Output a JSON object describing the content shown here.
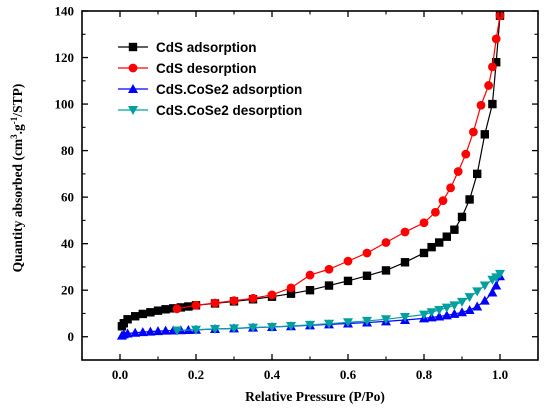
{
  "chart_data": {
    "type": "line",
    "xlabel": "Relative Pressure (P/Po)",
    "ylabel_main": "Quantity absorbed (cm",
    "ylabel_sup1": "3",
    "ylabel_mid": ".g",
    "ylabel_sup2": "-1",
    "ylabel_end": "/STP)",
    "xlim": [
      -0.1,
      1.1
    ],
    "ylim": [
      -10,
      140
    ],
    "xticks": [
      0.0,
      0.2,
      0.4,
      0.6,
      0.8,
      1.0
    ],
    "xtick_labels": [
      "0.0",
      "0.2",
      "0.4",
      "0.6",
      "0.8",
      "1.0"
    ],
    "yticks": [
      0,
      20,
      40,
      60,
      80,
      100,
      120,
      140
    ],
    "ytick_labels": [
      "0",
      "20",
      "40",
      "60",
      "80",
      "100",
      "120",
      "140"
    ],
    "legend_position": "top-left",
    "grid": false,
    "series": [
      {
        "name": "CdS adsorption",
        "color": "#000000",
        "marker": "square",
        "x": [
          0.005,
          0.01,
          0.02,
          0.04,
          0.06,
          0.08,
          0.1,
          0.12,
          0.14,
          0.16,
          0.18,
          0.2,
          0.25,
          0.3,
          0.35,
          0.4,
          0.45,
          0.5,
          0.55,
          0.6,
          0.65,
          0.7,
          0.75,
          0.8,
          0.82,
          0.84,
          0.86,
          0.88,
          0.9,
          0.92,
          0.94,
          0.96,
          0.98,
          0.99,
          1.0
        ],
        "y": [
          4.5,
          5.8,
          7.5,
          8.8,
          9.8,
          10.5,
          11.2,
          11.8,
          12.2,
          12.6,
          13.0,
          13.5,
          14.3,
          15.2,
          16.1,
          17.2,
          18.5,
          20.0,
          22.0,
          24.0,
          26.2,
          28.5,
          32.0,
          36.0,
          38.5,
          40.5,
          43.0,
          46.0,
          51.5,
          59.0,
          70.0,
          87.0,
          100.0,
          118.0,
          138.0
        ]
      },
      {
        "name": "CdS desorption",
        "color": "#ff0000",
        "marker": "circle",
        "x": [
          1.0,
          0.99,
          0.98,
          0.97,
          0.95,
          0.93,
          0.91,
          0.89,
          0.87,
          0.85,
          0.83,
          0.8,
          0.75,
          0.7,
          0.65,
          0.6,
          0.55,
          0.5,
          0.45,
          0.4,
          0.35,
          0.3,
          0.25,
          0.2,
          0.15
        ],
        "y": [
          138.0,
          128.0,
          116.0,
          108.0,
          99.5,
          88.0,
          78.5,
          71.0,
          64.0,
          58.5,
          53.5,
          49.0,
          45.0,
          40.5,
          36.0,
          32.5,
          29.0,
          26.5,
          21.0,
          18.0,
          16.5,
          15.5,
          14.5,
          13.5,
          12.0
        ]
      },
      {
        "name": "CdS.CoSe2 adsorption",
        "color": "#0000ff",
        "marker": "triangle-up",
        "x": [
          0.005,
          0.01,
          0.02,
          0.04,
          0.06,
          0.08,
          0.1,
          0.12,
          0.14,
          0.16,
          0.18,
          0.2,
          0.25,
          0.3,
          0.35,
          0.4,
          0.45,
          0.5,
          0.55,
          0.6,
          0.65,
          0.7,
          0.75,
          0.8,
          0.82,
          0.84,
          0.86,
          0.88,
          0.9,
          0.92,
          0.94,
          0.96,
          0.98,
          0.99,
          1.0
        ],
        "y": [
          0.5,
          1.0,
          1.4,
          1.7,
          2.0,
          2.2,
          2.4,
          2.6,
          2.7,
          2.8,
          2.9,
          3.0,
          3.3,
          3.6,
          3.9,
          4.2,
          4.5,
          4.9,
          5.3,
          5.7,
          6.1,
          6.6,
          7.2,
          7.9,
          8.3,
          8.7,
          9.2,
          9.8,
          10.5,
          11.5,
          13.0,
          15.5,
          19.0,
          22.0,
          26.0
        ]
      },
      {
        "name": "CdS.CoSe2 desorption",
        "color": "#00a0a0",
        "marker": "triangle-down",
        "x": [
          1.0,
          0.99,
          0.98,
          0.96,
          0.94,
          0.92,
          0.9,
          0.88,
          0.86,
          0.84,
          0.82,
          0.8,
          0.75,
          0.7,
          0.65,
          0.6,
          0.55,
          0.5,
          0.45,
          0.4,
          0.35,
          0.3,
          0.25,
          0.2,
          0.15
        ],
        "y": [
          27.0,
          25.5,
          24.5,
          22.0,
          19.5,
          17.0,
          15.0,
          13.5,
          12.5,
          11.5,
          10.5,
          9.5,
          8.5,
          7.5,
          6.8,
          6.2,
          5.6,
          5.1,
          4.6,
          4.2,
          3.9,
          3.6,
          3.3,
          3.0,
          2.7
        ]
      }
    ]
  }
}
